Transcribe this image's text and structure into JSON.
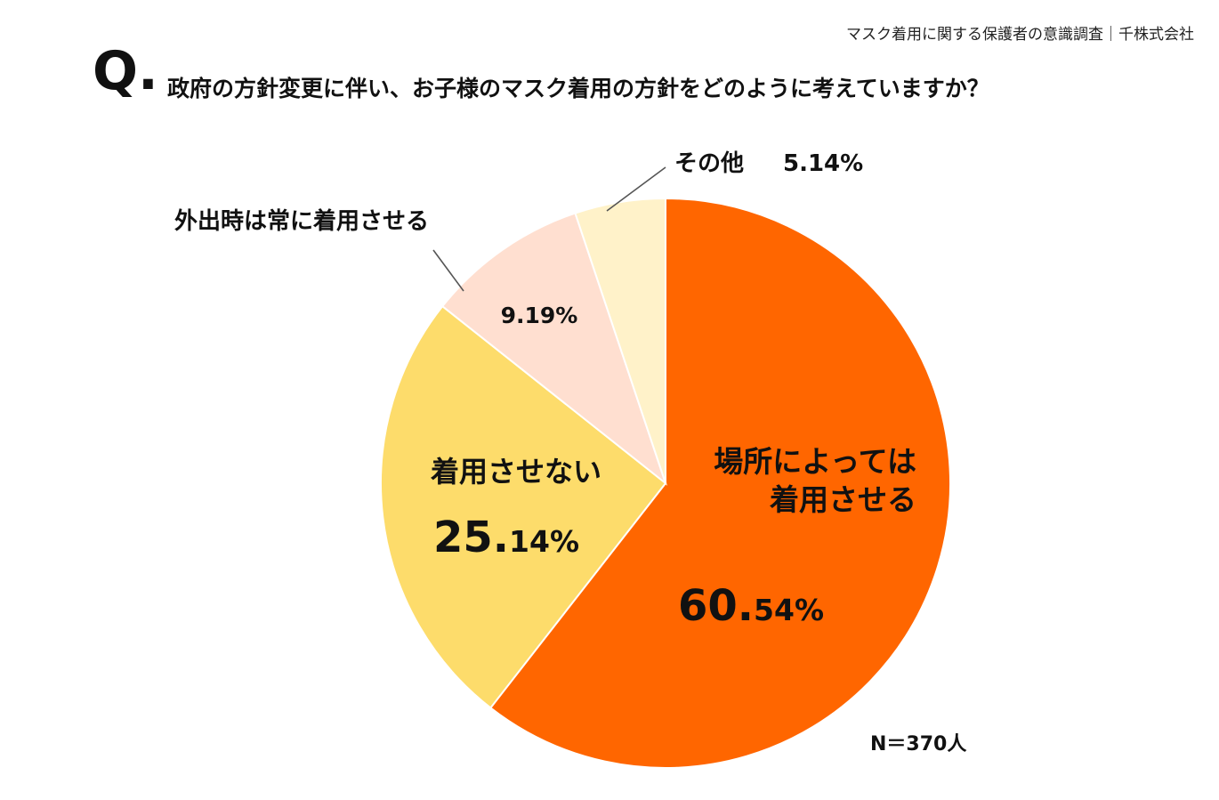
{
  "source": "マスク着用に関する保護者の意識調査｜千株式会社",
  "question_mark": "Q.",
  "chart_data": {
    "type": "pie",
    "title": "政府の方針変更に伴い、お子様のマスク着用の方針をどのように考えていますか？",
    "slices": [
      {
        "label_lines": [
          "場所によっては",
          "着用させる"
        ],
        "value": 60.54,
        "int_part": "60.",
        "dec_part": "54%",
        "color": "#FF6600"
      },
      {
        "label_lines": [
          "着用させない"
        ],
        "value": 25.14,
        "int_part": "25.",
        "dec_part": "14%",
        "color": "#FDDC6B"
      },
      {
        "label_lines": [
          "外出時は常に着用させる"
        ],
        "value": 9.19,
        "pct_text": "9.19%",
        "color": "#FFDFD0"
      },
      {
        "label_lines": [
          "その他"
        ],
        "value": 5.14,
        "pct_text": "5.14%",
        "color": "#FFF2C9"
      }
    ],
    "sample_size": "N＝370人"
  }
}
